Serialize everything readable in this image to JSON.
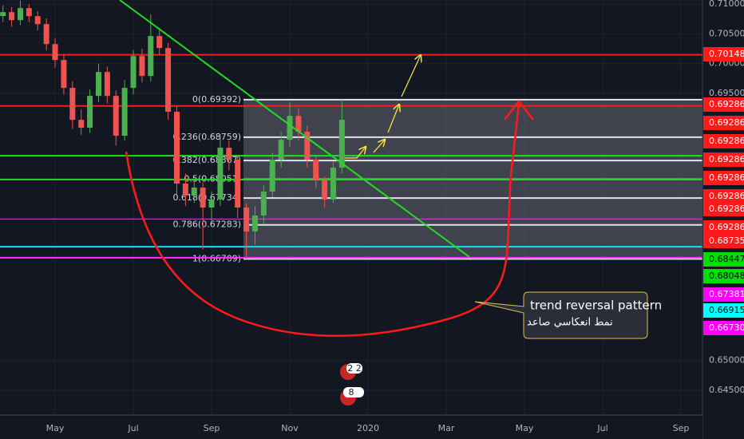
{
  "chart_data": {
    "type": "candlestick",
    "categories": [
      null,
      null,
      null,
      null,
      null,
      null,
      "May",
      null,
      null,
      null,
      null,
      null,
      null,
      null,
      null,
      "Jul",
      null,
      null,
      null,
      null,
      null,
      null,
      null,
      null,
      "Sep",
      null,
      null,
      null,
      null,
      null,
      null,
      null,
      null,
      "Nov",
      null,
      null,
      null,
      null,
      null,
      null,
      null,
      null,
      "2020",
      null,
      null,
      null,
      null,
      null,
      null,
      null,
      null,
      "Mar",
      null,
      null,
      null,
      null,
      null,
      null,
      null,
      null,
      "May",
      null,
      null,
      null,
      null,
      null,
      null,
      null,
      null,
      "Jul",
      null,
      null,
      null,
      null,
      null,
      null,
      null,
      null,
      "Sep",
      null,
      null
    ],
    "open": [
      0.708,
      0.70866,
      0.70731,
      0.70933,
      0.70798,
      0.70664,
      0.70328,
      0.7006,
      0.6959,
      0.69052,
      0.68918,
      0.69455,
      0.69858,
      0.69455,
      0.68784,
      0.6959,
      0.70127,
      0.69791,
      0.70463,
      0.70261,
      0.69187,
      0.67978,
      0.67777,
      0.67911,
      0.67575,
      0.6771,
      0.68582,
      0.68381,
      0.67575,
      0.67172,
      0.67441,
      0.67844,
      0.68381,
      0.68717,
      0.6912,
      0.68851,
      0.68381,
      0.68045,
      0.6771,
      0.68246,
      null,
      null,
      null,
      null,
      null,
      null,
      null,
      null,
      null,
      null,
      null,
      null,
      null,
      null,
      null,
      null,
      null,
      null,
      null,
      null,
      null,
      null,
      null,
      null,
      null,
      null,
      null,
      null,
      null,
      null,
      null,
      null,
      null,
      null,
      null,
      null,
      null,
      null,
      null,
      null,
      null
    ],
    "high": [
      0.7098,
      0.7095,
      0.7106,
      0.71,
      0.7088,
      0.7076,
      0.7043,
      0.7015,
      0.697,
      0.6923,
      0.6956,
      0.7,
      0.6995,
      0.6955,
      0.6972,
      0.7023,
      0.7025,
      0.7083,
      0.706,
      0.7035,
      0.6928,
      0.6815,
      0.6805,
      0.68,
      0.6785,
      0.688,
      0.687,
      0.6845,
      0.6765,
      0.676,
      0.6795,
      0.685,
      0.6885,
      0.6935,
      0.6925,
      0.6895,
      0.6845,
      0.681,
      0.6835,
      0.69392,
      null,
      null,
      null,
      null,
      null,
      null,
      null,
      null,
      null,
      null,
      null,
      null,
      null,
      null,
      null,
      null,
      null,
      null,
      null,
      null,
      null,
      null,
      null,
      null,
      null,
      null,
      null,
      null,
      null,
      null,
      null,
      null,
      null,
      null,
      null,
      null,
      null,
      null,
      null,
      null,
      null
    ],
    "low": [
      0.707,
      0.7062,
      0.7065,
      0.707,
      0.7056,
      0.7022,
      0.6993,
      0.6948,
      0.689,
      0.688,
      0.6883,
      0.6935,
      0.6933,
      0.6862,
      0.687,
      0.6948,
      0.6968,
      0.697,
      0.7015,
      0.6905,
      0.678,
      0.676,
      0.6765,
      0.6687,
      0.6735,
      0.676,
      0.682,
      0.674,
      0.66709,
      0.6695,
      0.673,
      0.6775,
      0.6825,
      0.686,
      0.687,
      0.6825,
      0.679,
      0.6758,
      0.6765,
      0.6815,
      null,
      null,
      null,
      null,
      null,
      null,
      null,
      null,
      null,
      null,
      null,
      null,
      null,
      null,
      null,
      null,
      null,
      null,
      null,
      null,
      null,
      null,
      null,
      null,
      null,
      null,
      null,
      null,
      null,
      null,
      null,
      null,
      null,
      null,
      null,
      null,
      null,
      null,
      null,
      null,
      null
    ],
    "close": [
      0.70866,
      0.70731,
      0.70933,
      0.70798,
      0.70664,
      0.70328,
      0.7006,
      0.6959,
      0.69052,
      0.68918,
      0.69455,
      0.69858,
      0.69455,
      0.68784,
      0.6959,
      0.70127,
      0.69791,
      0.70463,
      0.70261,
      0.69187,
      0.67978,
      0.67777,
      0.67911,
      0.67575,
      0.6771,
      0.68582,
      0.68381,
      0.67575,
      0.67172,
      0.67441,
      0.67844,
      0.68381,
      0.68717,
      0.6912,
      0.68851,
      0.68381,
      0.68045,
      0.6771,
      0.68246,
      0.69052,
      null,
      null,
      null,
      null,
      null,
      null,
      null,
      null,
      null,
      null,
      null,
      null,
      null,
      null,
      null,
      null,
      null,
      null,
      null,
      null,
      null,
      null,
      null,
      null,
      null,
      null,
      null,
      null,
      null,
      null,
      null,
      null,
      null,
      null,
      null,
      null,
      null,
      null,
      null,
      null,
      null
    ],
    "up_color": "#4caf50",
    "down_color": "#ef5350",
    "ylim": [
      0.6408,
      0.7107
    ],
    "yticks": [
      {
        "value": 0.71,
        "label": "0.71000"
      },
      {
        "value": 0.705,
        "label": "0.70500"
      },
      {
        "value": 0.7,
        "label": "0.70000"
      },
      {
        "value": 0.695,
        "label": "0.69500"
      },
      {
        "value": 0.65,
        "label": "0.65000"
      },
      {
        "value": 0.645,
        "label": "0.64500"
      }
    ],
    "grid": true,
    "hlines": [
      {
        "value": 0.70148,
        "color": "#ff1a1a"
      },
      {
        "value": 0.69286,
        "color": "#ff1a1a"
      },
      {
        "value": 0.68447,
        "color": "#22dd22"
      },
      {
        "value": 0.68048,
        "color": "#22dd22"
      },
      {
        "value": 0.67381,
        "color": "#e040e0"
      },
      {
        "value": 0.66915,
        "color": "#00e5ff"
      },
      {
        "value": 0.6673,
        "color": "#ff30ff"
      }
    ],
    "price_labels": [
      {
        "label": "0.70148",
        "color": "#ff1a1a"
      },
      {
        "label": "0.69286",
        "color": "#ff1a1a"
      },
      {
        "label": "0.69286",
        "color": "#ff1a1a"
      },
      {
        "label": "0.69286",
        "color": "#ff1a1a"
      },
      {
        "label": "0.69286",
        "color": "#ff1a1a"
      },
      {
        "label": "0.69286",
        "color": "#ff1a1a"
      },
      {
        "label": "0.69286",
        "color": "#ff1a1a"
      },
      {
        "label": "0.69286",
        "color": "#ff1a1a"
      },
      {
        "label": "0.69286",
        "color": "#ff1a1a"
      },
      {
        "label": "0.68735",
        "color": "#ff1a1a"
      },
      {
        "label": "0.68447",
        "color": "#00e000"
      },
      {
        "label": "0.68048",
        "color": "#00e000"
      },
      {
        "label": "0.67381",
        "color": "#ff00ff"
      },
      {
        "label": "0.66915",
        "color": "#00ffff"
      },
      {
        "label": "0.66730",
        "color": "#ff00ff"
      }
    ],
    "fib": {
      "labels": [
        "0(0.69392)",
        "0.236(0.68759)",
        "0.382(0.68367)",
        "0.5(0.68051)",
        "0.618(0.67734)",
        "0.786(0.67283)",
        "1(0.66709)"
      ],
      "prices": [
        0.69392,
        0.68759,
        0.68367,
        0.68051,
        0.67734,
        0.67283,
        0.66709
      ]
    },
    "annotation": {
      "title": "trend reversal pattern",
      "subtitle": "نمط انعكاسي صاعد"
    },
    "badges": [
      "2 2",
      "8"
    ]
  }
}
